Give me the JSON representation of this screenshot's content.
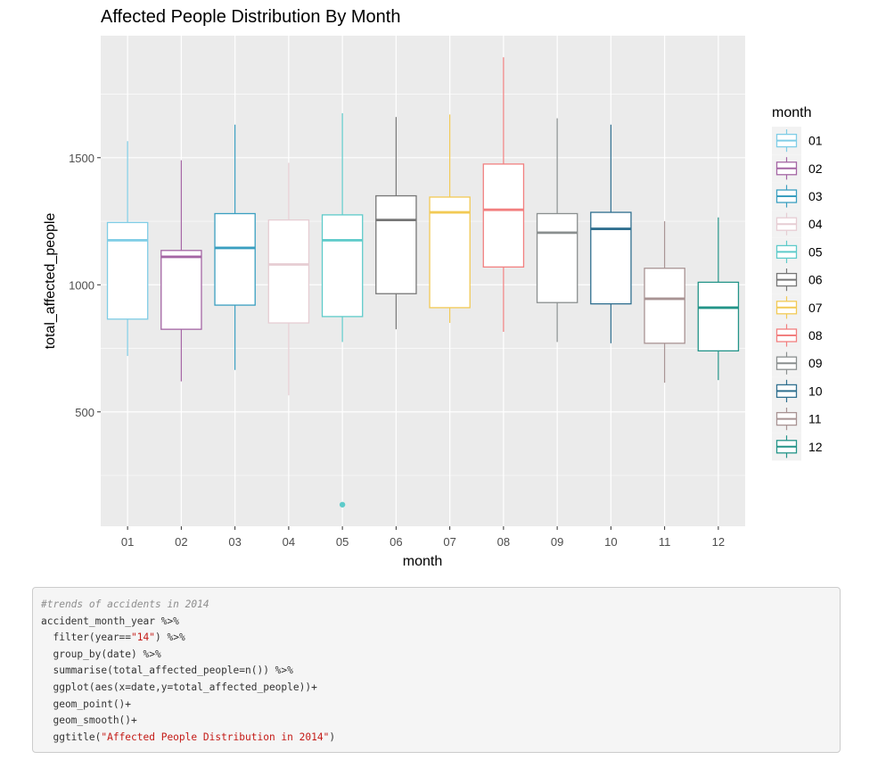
{
  "chart_data": {
    "type": "boxplot",
    "title": "Affected People Distribution By Month",
    "xlabel": "month",
    "ylabel": "total_affected_people",
    "ylim": [
      50,
      1980
    ],
    "yticks": [
      500,
      1000,
      1500
    ],
    "grid": true,
    "legend": {
      "title": "month",
      "position": "right"
    },
    "categories": [
      "01",
      "02",
      "03",
      "04",
      "05",
      "06",
      "07",
      "08",
      "09",
      "10",
      "11",
      "12"
    ],
    "colors": [
      "#7fcde6",
      "#a465a4",
      "#3a9fc0",
      "#e6cdd3",
      "#5ecbca",
      "#767676",
      "#f2ca55",
      "#f27f7f",
      "#8a8f8f",
      "#2f6f8f",
      "#a89393",
      "#239488"
    ],
    "boxes": [
      {
        "month": "01",
        "min": 720,
        "q1": 865,
        "median": 1175,
        "q3": 1245,
        "max": 1565,
        "outliers": []
      },
      {
        "month": "02",
        "min": 620,
        "q1": 825,
        "median": 1110,
        "q3": 1135,
        "max": 1490,
        "outliers": []
      },
      {
        "month": "03",
        "min": 665,
        "q1": 920,
        "median": 1145,
        "q3": 1280,
        "max": 1630,
        "outliers": []
      },
      {
        "month": "04",
        "min": 565,
        "q1": 850,
        "median": 1080,
        "q3": 1255,
        "max": 1480,
        "outliers": []
      },
      {
        "month": "05",
        "min": 775,
        "q1": 875,
        "median": 1175,
        "q3": 1275,
        "max": 1675,
        "outliers": [
          135
        ]
      },
      {
        "month": "06",
        "min": 825,
        "q1": 965,
        "median": 1255,
        "q3": 1350,
        "max": 1660,
        "outliers": []
      },
      {
        "month": "07",
        "min": 850,
        "q1": 910,
        "median": 1285,
        "q3": 1345,
        "max": 1670,
        "outliers": []
      },
      {
        "month": "08",
        "min": 815,
        "q1": 1070,
        "median": 1295,
        "q3": 1475,
        "max": 1895,
        "outliers": []
      },
      {
        "month": "09",
        "min": 775,
        "q1": 930,
        "median": 1205,
        "q3": 1280,
        "max": 1655,
        "outliers": []
      },
      {
        "month": "10",
        "min": 770,
        "q1": 925,
        "median": 1220,
        "q3": 1285,
        "max": 1630,
        "outliers": []
      },
      {
        "month": "11",
        "min": 615,
        "q1": 770,
        "median": 945,
        "q3": 1065,
        "max": 1250,
        "outliers": []
      },
      {
        "month": "12",
        "min": 625,
        "q1": 740,
        "median": 910,
        "q3": 1010,
        "max": 1265,
        "outliers": []
      }
    ]
  },
  "code": {
    "lines": [
      [
        {
          "t": "#trends of accidents in 2014",
          "k": "comment"
        }
      ],
      [
        {
          "t": "accident_month_year %>%",
          "k": "plain"
        }
      ],
      [
        {
          "t": "  filter(year==",
          "k": "plain"
        },
        {
          "t": "\"14\"",
          "k": "string"
        },
        {
          "t": ") %>%",
          "k": "plain"
        }
      ],
      [
        {
          "t": "  group_by(date) %>%",
          "k": "plain"
        }
      ],
      [
        {
          "t": "  summarise(total_affected_people=n()) %>%",
          "k": "plain"
        }
      ],
      [
        {
          "t": "  ggplot(aes(x=date,y=total_affected_people))+",
          "k": "plain"
        }
      ],
      [
        {
          "t": "  geom_point()+",
          "k": "plain"
        }
      ],
      [
        {
          "t": "  geom_smooth()+",
          "k": "plain"
        }
      ],
      [
        {
          "t": "  ggtitle(",
          "k": "plain"
        },
        {
          "t": "\"Affected People Distribution in 2014\"",
          "k": "string"
        },
        {
          "t": ")",
          "k": "plain"
        }
      ]
    ]
  }
}
